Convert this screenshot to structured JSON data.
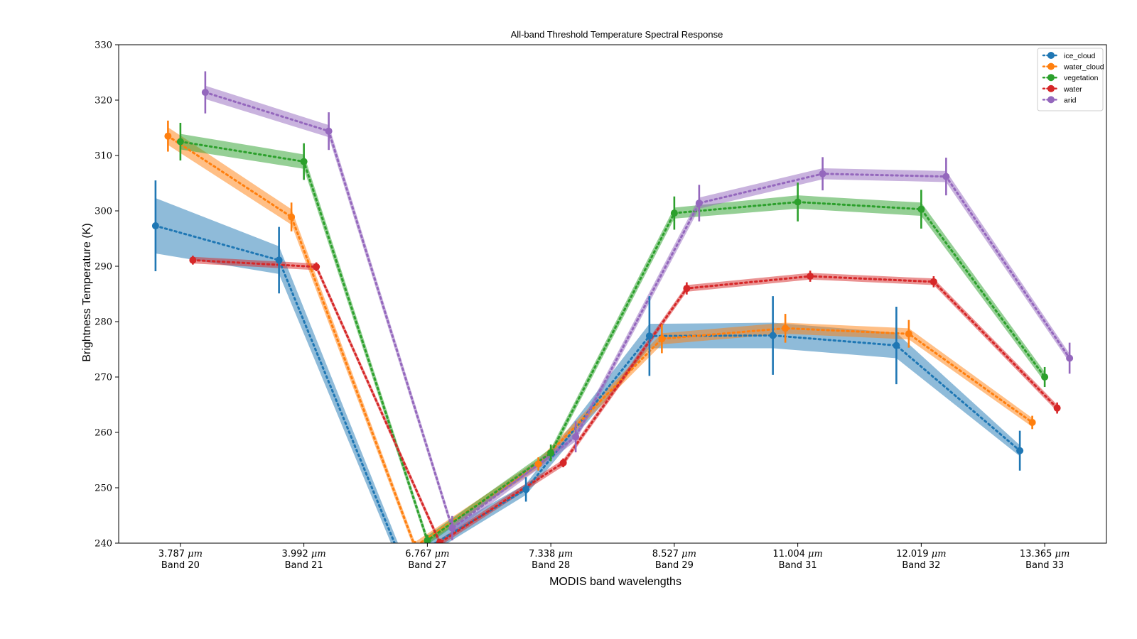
{
  "chart_data": {
    "type": "line",
    "title": "All-band Threshold Temperature Spectral Response",
    "xlabel": "MODIS band wavelengths",
    "ylabel": "Brightness Temperature (K)",
    "ylim": [
      240,
      330
    ],
    "yticks": [
      240,
      250,
      260,
      270,
      280,
      290,
      300,
      310,
      320,
      330
    ],
    "categories": [
      {
        "wavelength": "3.787",
        "unit": "μm",
        "band": "Band 20"
      },
      {
        "wavelength": "3.992",
        "unit": "μm",
        "band": "Band 21"
      },
      {
        "wavelength": "6.767",
        "unit": "μm",
        "band": "Band 27"
      },
      {
        "wavelength": "7.338",
        "unit": "μm",
        "band": "Band 28"
      },
      {
        "wavelength": "8.527",
        "unit": "μm",
        "band": "Band 29"
      },
      {
        "wavelength": "11.004",
        "unit": "μm",
        "band": "Band 31"
      },
      {
        "wavelength": "12.019",
        "unit": "μm",
        "band": "Band 32"
      },
      {
        "wavelength": "13.365",
        "unit": "μm",
        "band": "Band 33"
      }
    ],
    "legend_position": "top-right",
    "grid": false,
    "series": [
      {
        "name": "ice_cloud",
        "color": "#1f77b4",
        "values": [
          297.3,
          291.1,
          236.5,
          249.7,
          277.4,
          277.5,
          275.7,
          256.7
        ],
        "err": [
          8.2,
          6.0,
          3.0,
          2.2,
          7.2,
          7.1,
          7.0,
          3.6
        ],
        "band": [
          5.0,
          2.5,
          1.5,
          1.0,
          2.2,
          2.3,
          2.3,
          1.0
        ]
      },
      {
        "name": "water_cloud",
        "color": "#ff7f0e",
        "values": [
          313.5,
          298.9,
          239.4,
          254.3,
          276.9,
          278.8,
          277.8,
          261.8
        ],
        "err": [
          2.8,
          2.6,
          1.0,
          1.2,
          2.6,
          2.6,
          2.5,
          1.2
        ],
        "band": [
          1.6,
          1.4,
          0.8,
          0.8,
          1.0,
          1.0,
          1.0,
          0.8
        ]
      },
      {
        "name": "vegetation",
        "color": "#2ca02c",
        "values": [
          312.5,
          308.9,
          240.5,
          256.3,
          299.6,
          301.6,
          300.3,
          270.0
        ],
        "err": [
          3.4,
          3.3,
          1.0,
          1.5,
          3.0,
          3.5,
          3.5,
          1.8
        ],
        "band": [
          1.4,
          1.3,
          0.8,
          0.8,
          1.0,
          1.2,
          1.2,
          0.9
        ]
      },
      {
        "name": "water",
        "color": "#d62728",
        "values": [
          291.1,
          289.9,
          240.1,
          254.5,
          286.0,
          288.2,
          287.2,
          264.4
        ],
        "err": [
          0.8,
          0.8,
          0.7,
          0.8,
          1.1,
          1.0,
          1.0,
          1.0
        ],
        "band": [
          0.6,
          0.6,
          0.6,
          0.6,
          0.6,
          0.6,
          0.6,
          0.6
        ]
      },
      {
        "name": "arid",
        "color": "#9467bd",
        "values": [
          321.4,
          314.4,
          242.7,
          259.2,
          301.4,
          306.7,
          306.2,
          273.4
        ],
        "err": [
          3.8,
          3.4,
          2.2,
          2.8,
          3.3,
          3.0,
          3.4,
          2.8
        ],
        "band": [
          1.2,
          1.1,
          0.8,
          0.8,
          1.0,
          1.0,
          1.0,
          0.8
        ]
      }
    ]
  }
}
